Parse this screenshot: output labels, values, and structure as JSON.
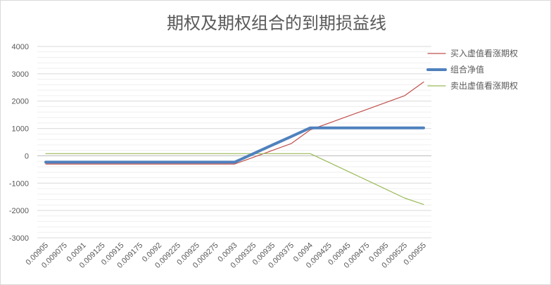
{
  "chart_data": {
    "type": "line",
    "title": "期权及期权组合的到期损益线",
    "xlabel": "",
    "ylabel": "",
    "ylim": [
      -3000,
      4000
    ],
    "y_ticks": [
      4000,
      3000,
      2000,
      1000,
      0,
      -1000,
      -2000,
      -3000
    ],
    "x": [
      "0.00905",
      "0.009075",
      "0.0091",
      "0.009125",
      "0.00915",
      "0.009175",
      "0.0092",
      "0.009225",
      "0.00925",
      "0.009275",
      "0.0093",
      "0.009325",
      "0.00935",
      "0.009375",
      "0.0094",
      "0.009425",
      "0.00945",
      "0.009475",
      "0.0095",
      "0.009525",
      "0.00955"
    ],
    "grid": true,
    "legend_position": "right",
    "series": [
      {
        "name": "买入虚值看涨期权",
        "color": "#c0504d",
        "width": 1.2,
        "values": [
          -300,
          -300,
          -300,
          -300,
          -300,
          -300,
          -300,
          -300,
          -300,
          -300,
          -300,
          -50,
          200,
          450,
          950,
          1200,
          1450,
          1700,
          1950,
          2200,
          2700
        ]
      },
      {
        "name": "组合净值",
        "color": "#4f81bd",
        "width": 4,
        "values": [
          -230,
          -230,
          -230,
          -230,
          -230,
          -230,
          -230,
          -230,
          -230,
          -230,
          -230,
          83,
          396,
          709,
          1022,
          1022,
          1022,
          1022,
          1022,
          1022,
          1022
        ]
      },
      {
        "name": "卖出虚值看涨期权",
        "color": "#9bbb59",
        "width": 1.2,
        "values": [
          80,
          80,
          80,
          80,
          80,
          80,
          80,
          80,
          80,
          80,
          80,
          80,
          80,
          80,
          80,
          -245,
          -570,
          -895,
          -1220,
          -1545,
          -1780
        ]
      }
    ]
  }
}
